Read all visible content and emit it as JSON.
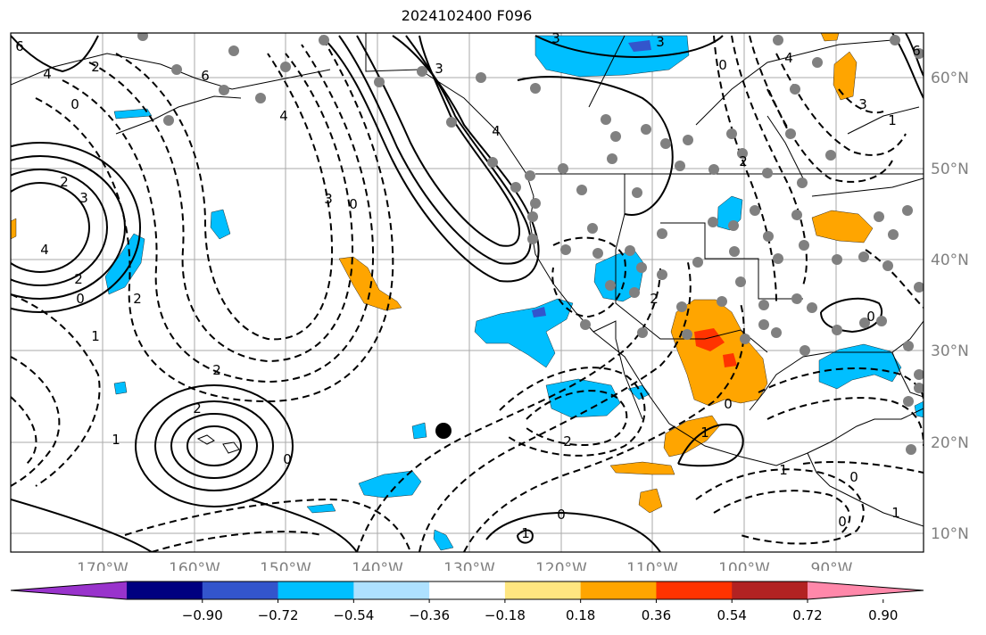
{
  "title": "2024102400 F096",
  "map": {
    "lon_ticks": [
      "170°W",
      "160°W",
      "150°W",
      "140°W",
      "130°W",
      "120°W",
      "110°W",
      "100°W",
      "90°W"
    ],
    "lat_ticks": [
      "60°N",
      "50°N",
      "40°N",
      "30°N",
      "20°N",
      "10°N"
    ],
    "tick_color": "#808080",
    "contour_labels": [
      "6",
      "2",
      "0",
      "4",
      "6",
      "4",
      "3",
      "4",
      "3",
      "0",
      "2",
      "3",
      "4",
      "2",
      "0",
      "2",
      "2",
      "1",
      "1",
      "0",
      "3",
      "3",
      "4",
      "6",
      "0",
      "2",
      "3",
      "1",
      "2",
      "2",
      "0",
      "0",
      "1",
      "2",
      "1",
      "0",
      "1",
      "0",
      "0",
      "1"
    ]
  },
  "colorbar": {
    "ticks": [
      "−0.90",
      "−0.72",
      "−0.54",
      "−0.36",
      "−0.18",
      "0.18",
      "0.36",
      "0.54",
      "0.72",
      "0.90"
    ],
    "colors": [
      "#9933cc",
      "#000080",
      "#3355cc",
      "#00bfff",
      "#aee1ff",
      "#ffffff",
      "#ffe680",
      "#ffa500",
      "#ff3300",
      "#b22222",
      "#ff88aa"
    ]
  }
}
